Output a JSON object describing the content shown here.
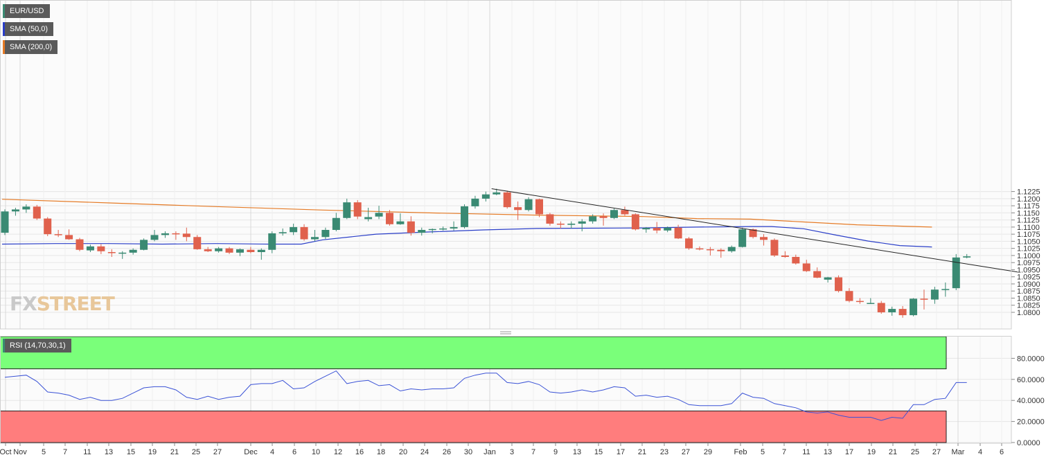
{
  "watermark": {
    "part1": "FX",
    "part2": "STREET"
  },
  "colors": {
    "up": "#3a8a73",
    "down": "#e0614d",
    "sma50": "#2a3ec8",
    "sma200": "#e57a25",
    "trendline": "#222222",
    "rsi": "#3a52d6",
    "overbought_zone": "#7aff7a",
    "oversold_zone": "#ff7d7d",
    "legend_bg": "#5a5a5a"
  },
  "chart_data": [
    {
      "type": "candlestick",
      "title": "EUR/USD",
      "legend": [
        {
          "label": "EUR/USD",
          "color": "#3a8a73"
        },
        {
          "label": "SMA (50,0)",
          "color": "#2a3ec8"
        },
        {
          "label": "SMA (200,0)",
          "color": "#e57a25"
        }
      ],
      "ylim": [
        1.078,
        1.124
      ],
      "y_ticks": [
        "1.1225",
        "1.1200",
        "1.1175",
        "1.1150",
        "1.1125",
        "1.1100",
        "1.1075",
        "1.1050",
        "1.1025",
        "1.1000",
        "1.0975",
        "1.0950",
        "1.0925",
        "1.0900",
        "1.0875",
        "1.0850",
        "1.0825",
        "1.0800"
      ],
      "x_ticks": [
        "Oct",
        "Nov",
        "5",
        "7",
        "11",
        "13",
        "15",
        "19",
        "21",
        "25",
        "27",
        "Dec",
        "4",
        "6",
        "10",
        "12",
        "16",
        "18",
        "20",
        "24",
        "26",
        "30",
        "Jan",
        "3",
        "7",
        "9",
        "13",
        "15",
        "17",
        "21",
        "23",
        "27",
        "29",
        "Feb",
        "5",
        "7",
        "11",
        "13",
        "17",
        "19",
        "21",
        "25",
        "27",
        "Mar",
        "4",
        "6"
      ],
      "candles": [
        [
          1.108,
          1.1162,
          1.1072,
          1.1155
        ],
        [
          1.1155,
          1.1168,
          1.114,
          1.1162
        ],
        [
          1.1162,
          1.118,
          1.115,
          1.1172
        ],
        [
          1.1172,
          1.1178,
          1.1125,
          1.113
        ],
        [
          1.113,
          1.1135,
          1.1068,
          1.1075
        ],
        [
          1.1075,
          1.109,
          1.1065,
          1.1072
        ],
        [
          1.1072,
          1.1092,
          1.1055,
          1.1057
        ],
        [
          1.1057,
          1.1062,
          1.1015,
          1.102
        ],
        [
          1.1018,
          1.1038,
          1.1012,
          1.1032
        ],
        [
          1.1032,
          1.104,
          1.1005,
          1.1015
        ],
        [
          1.1012,
          1.1022,
          1.0995,
          1.101
        ],
        [
          1.101,
          1.1015,
          1.0988,
          1.101
        ],
        [
          1.101,
          1.1025,
          1.1003,
          1.102
        ],
        [
          1.102,
          1.106,
          1.1018,
          1.1055
        ],
        [
          1.1055,
          1.109,
          1.105,
          1.1072
        ],
        [
          1.1072,
          1.1085,
          1.1062,
          1.1078
        ],
        [
          1.1078,
          1.1085,
          1.1055,
          1.1077
        ],
        [
          1.1077,
          1.1098,
          1.105,
          1.1065
        ],
        [
          1.1065,
          1.1072,
          1.102,
          1.1022
        ],
        [
          1.1022,
          1.103,
          1.1012,
          1.1015
        ],
        [
          1.1015,
          1.103,
          1.101,
          1.1025
        ],
        [
          1.1025,
          1.103,
          1.1005,
          1.101
        ],
        [
          1.101,
          1.1025,
          1.0998,
          1.1022
        ],
        [
          1.102,
          1.103,
          1.1008,
          1.1012
        ],
        [
          1.1012,
          1.1025,
          1.0985,
          1.102
        ],
        [
          1.102,
          1.1085,
          1.1008,
          1.1078
        ],
        [
          1.1078,
          1.1095,
          1.107,
          1.1082
        ],
        [
          1.1082,
          1.1112,
          1.1072,
          1.11
        ],
        [
          1.11,
          1.111,
          1.1052,
          1.1057
        ],
        [
          1.1057,
          1.109,
          1.105,
          1.1065
        ],
        [
          1.1065,
          1.1098,
          1.1058,
          1.109
        ],
        [
          1.109,
          1.115,
          1.1085,
          1.1132
        ],
        [
          1.1132,
          1.12,
          1.1128,
          1.1187
        ],
        [
          1.1187,
          1.1195,
          1.1128,
          1.1137
        ],
        [
          1.1128,
          1.1168,
          1.112,
          1.1135
        ],
        [
          1.1137,
          1.1175,
          1.1128,
          1.115
        ],
        [
          1.115,
          1.116,
          1.1105,
          1.111
        ],
        [
          1.111,
          1.1148,
          1.1108,
          1.112
        ],
        [
          1.112,
          1.1138,
          1.107,
          1.108
        ],
        [
          1.108,
          1.1098,
          1.107,
          1.109
        ],
        [
          1.109,
          1.1095,
          1.1078,
          1.1093
        ],
        [
          1.1093,
          1.1102,
          1.1088,
          1.1095
        ],
        [
          1.1095,
          1.112,
          1.1088,
          1.11
        ],
        [
          1.11,
          1.118,
          1.1095,
          1.1173
        ],
        [
          1.1173,
          1.121,
          1.1165,
          1.12
        ],
        [
          1.12,
          1.1225,
          1.119,
          1.1215
        ],
        [
          1.1215,
          1.1235,
          1.1212,
          1.1222
        ],
        [
          1.1222,
          1.1228,
          1.1165,
          1.117
        ],
        [
          1.117,
          1.119,
          1.1125,
          1.116
        ],
        [
          1.116,
          1.1205,
          1.1155,
          1.1198
        ],
        [
          1.1198,
          1.12,
          1.1135,
          1.1145
        ],
        [
          1.1145,
          1.115,
          1.1105,
          1.1112
        ],
        [
          1.1112,
          1.112,
          1.1095,
          1.111
        ],
        [
          1.1108,
          1.112,
          1.1095,
          1.1112
        ],
        [
          1.1112,
          1.1128,
          1.1085,
          1.112
        ],
        [
          1.112,
          1.1145,
          1.1112,
          1.1138
        ],
        [
          1.1138,
          1.1148,
          1.1105,
          1.1132
        ],
        [
          1.1132,
          1.1165,
          1.1128,
          1.116
        ],
        [
          1.116,
          1.1172,
          1.114,
          1.1145
        ],
        [
          1.1145,
          1.1148,
          1.1088,
          1.1092
        ],
        [
          1.1092,
          1.11,
          1.108,
          1.1097
        ],
        [
          1.1097,
          1.1118,
          1.1078,
          1.1088
        ],
        [
          1.1088,
          1.1102,
          1.1082,
          1.1098
        ],
        [
          1.1098,
          1.1108,
          1.1058,
          1.106
        ],
        [
          1.106,
          1.1065,
          1.102,
          1.1025
        ],
        [
          1.1025,
          1.1032,
          1.1018,
          1.1022
        ],
        [
          1.1022,
          1.103,
          1.1,
          1.102
        ],
        [
          1.102,
          1.1025,
          1.0992,
          1.1015
        ],
        [
          1.1015,
          1.1035,
          1.101,
          1.103
        ],
        [
          1.103,
          1.1098,
          1.1028,
          1.1092
        ],
        [
          1.1092,
          1.1095,
          1.106,
          1.1065
        ],
        [
          1.1065,
          1.1075,
          1.1035,
          1.1055
        ],
        [
          1.1055,
          1.106,
          1.0995,
          1.1
        ],
        [
          1.1,
          1.1015,
          1.0992,
          1.0995
        ],
        [
          1.0995,
          1.1003,
          1.0968,
          1.0972
        ],
        [
          1.0972,
          1.0985,
          1.0942,
          1.0945
        ],
        [
          1.0945,
          1.0958,
          1.092,
          1.0922
        ],
        [
          1.0915,
          1.0925,
          1.0905,
          1.0923
        ],
        [
          1.0923,
          1.093,
          1.087,
          1.0875
        ],
        [
          1.0875,
          1.0885,
          1.0835,
          1.084
        ],
        [
          1.084,
          1.085,
          1.083,
          1.0838
        ],
        [
          1.083,
          1.085,
          1.083,
          1.0833
        ],
        [
          1.0833,
          1.084,
          1.0795,
          1.08
        ],
        [
          1.08,
          1.082,
          1.0788,
          1.0812
        ],
        [
          1.0812,
          1.0822,
          1.0781,
          1.079
        ],
        [
          1.079,
          1.085,
          1.0786,
          1.0848
        ],
        [
          1.0848,
          1.088,
          1.081,
          1.0845
        ],
        [
          1.0845,
          1.089,
          1.083,
          1.088
        ],
        [
          1.088,
          1.0905,
          1.0855,
          1.0882
        ],
        [
          1.0885,
          1.1005,
          1.0878,
          1.0993
        ],
        [
          1.0993,
          1.1005,
          1.099,
          1.0997
        ]
      ],
      "sma50": [
        [
          0,
          1.104
        ],
        [
          5,
          1.1042
        ],
        [
          10,
          1.1042
        ],
        [
          15,
          1.104
        ],
        [
          20,
          1.1042
        ],
        [
          25,
          1.104
        ],
        [
          28,
          1.104
        ],
        [
          30,
          1.1055
        ],
        [
          35,
          1.1075
        ],
        [
          40,
          1.1083
        ],
        [
          45,
          1.109
        ],
        [
          50,
          1.1095
        ],
        [
          55,
          1.1096
        ],
        [
          60,
          1.1097
        ],
        [
          65,
          1.11
        ],
        [
          70,
          1.1102
        ],
        [
          72,
          1.1102
        ],
        [
          75,
          1.1094
        ],
        [
          78,
          1.1072
        ],
        [
          81,
          1.1051
        ],
        [
          84,
          1.1035
        ],
        [
          87,
          1.103
        ]
      ],
      "sma200": [
        [
          0,
          1.1198
        ],
        [
          10,
          1.1185
        ],
        [
          20,
          1.1172
        ],
        [
          30,
          1.116
        ],
        [
          40,
          1.115
        ],
        [
          50,
          1.1142
        ],
        [
          60,
          1.1137
        ],
        [
          65,
          1.113
        ],
        [
          70,
          1.1128
        ],
        [
          75,
          1.1118
        ],
        [
          80,
          1.1108
        ],
        [
          87,
          1.11
        ]
      ],
      "trendline": [
        [
          45.8,
          1.1235
        ],
        [
          95,
          1.0942
        ]
      ]
    },
    {
      "type": "line",
      "title": "RSI (14,70,30,1)",
      "ylim": [
        0,
        100
      ],
      "y_ticks": [
        "80.0000",
        "60.0000",
        "40.0000",
        "20.0000",
        "0.0000"
      ],
      "overbought": 70,
      "oversold": 30,
      "values": [
        62,
        63,
        64,
        58,
        48,
        47,
        45,
        41,
        43,
        40,
        40,
        42,
        47,
        52,
        53,
        53,
        50,
        43,
        41,
        44,
        41,
        43,
        44,
        55,
        56,
        56,
        59,
        51,
        52,
        58,
        63,
        68,
        56,
        58,
        59,
        54,
        55,
        49,
        51,
        50,
        51,
        51,
        52,
        61,
        64,
        66,
        66,
        57,
        56,
        58,
        55,
        48,
        47,
        48,
        50,
        48,
        50,
        53,
        52,
        44,
        45,
        43,
        44,
        41,
        36,
        35,
        35,
        35,
        37,
        47,
        43,
        42,
        37,
        35,
        33,
        29,
        28,
        29,
        26,
        24,
        24,
        24,
        21,
        24,
        23,
        36,
        36,
        41,
        42,
        57,
        57
      ]
    }
  ]
}
